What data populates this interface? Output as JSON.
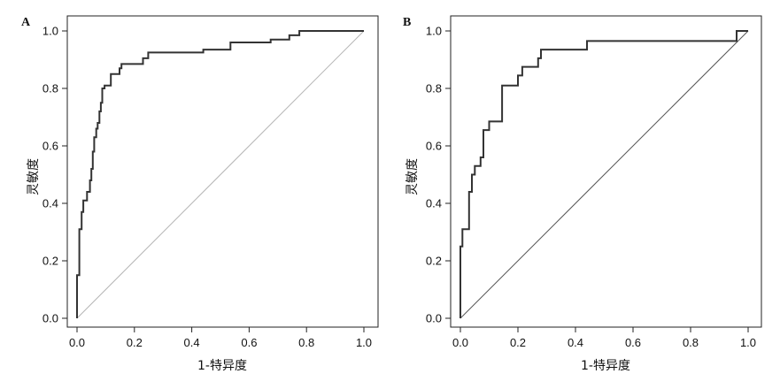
{
  "chart_data": [
    {
      "panel": "A",
      "type": "line",
      "xlabel": "1-特异度",
      "ylabel": "灵敏度",
      "xlim": [
        0,
        1
      ],
      "ylim": [
        0,
        1
      ],
      "xticks": [
        "0.0",
        "0.2",
        "0.4",
        "0.6",
        "0.8",
        "1.0"
      ],
      "yticks": [
        "0.0",
        "0.2",
        "0.4",
        "0.6",
        "0.8",
        "1.0"
      ],
      "diagonal_color": "#b5b5b5",
      "series": [
        {
          "points": [
            [
              0,
              0
            ],
            [
              0,
              0.15
            ],
            [
              0.008,
              0.15
            ],
            [
              0.008,
              0.31
            ],
            [
              0.016,
              0.31
            ],
            [
              0.016,
              0.37
            ],
            [
              0.022,
              0.37
            ],
            [
              0.022,
              0.41
            ],
            [
              0.035,
              0.41
            ],
            [
              0.035,
              0.44
            ],
            [
              0.045,
              0.44
            ],
            [
              0.045,
              0.48
            ],
            [
              0.05,
              0.48
            ],
            [
              0.05,
              0.52
            ],
            [
              0.055,
              0.52
            ],
            [
              0.055,
              0.58
            ],
            [
              0.06,
              0.58
            ],
            [
              0.06,
              0.63
            ],
            [
              0.067,
              0.63
            ],
            [
              0.067,
              0.66
            ],
            [
              0.072,
              0.66
            ],
            [
              0.072,
              0.68
            ],
            [
              0.078,
              0.68
            ],
            [
              0.078,
              0.72
            ],
            [
              0.083,
              0.72
            ],
            [
              0.083,
              0.75
            ],
            [
              0.088,
              0.75
            ],
            [
              0.088,
              0.8
            ],
            [
              0.096,
              0.8
            ],
            [
              0.096,
              0.81
            ],
            [
              0.118,
              0.81
            ],
            [
              0.118,
              0.85
            ],
            [
              0.148,
              0.85
            ],
            [
              0.148,
              0.87
            ],
            [
              0.155,
              0.87
            ],
            [
              0.155,
              0.885
            ],
            [
              0.23,
              0.885
            ],
            [
              0.23,
              0.905
            ],
            [
              0.248,
              0.905
            ],
            [
              0.248,
              0.925
            ],
            [
              0.44,
              0.925
            ],
            [
              0.44,
              0.935
            ],
            [
              0.535,
              0.935
            ],
            [
              0.535,
              0.96
            ],
            [
              0.675,
              0.96
            ],
            [
              0.675,
              0.97
            ],
            [
              0.74,
              0.97
            ],
            [
              0.74,
              0.985
            ],
            [
              0.775,
              0.985
            ],
            [
              0.775,
              1.0
            ],
            [
              1.0,
              1.0
            ]
          ]
        }
      ]
    },
    {
      "panel": "B",
      "type": "line",
      "xlabel": "1-特异度",
      "ylabel": "灵敏度",
      "xlim": [
        0,
        1
      ],
      "ylim": [
        0,
        1
      ],
      "xticks": [
        "0.0",
        "0.2",
        "0.4",
        "0.6",
        "0.8",
        "1.0"
      ],
      "yticks": [
        "0.0",
        "0.2",
        "0.4",
        "0.6",
        "0.8",
        "1.0"
      ],
      "diagonal_color": "#555555",
      "series": [
        {
          "points": [
            [
              0,
              0
            ],
            [
              0,
              0.25
            ],
            [
              0.007,
              0.25
            ],
            [
              0.007,
              0.31
            ],
            [
              0.03,
              0.31
            ],
            [
              0.03,
              0.44
            ],
            [
              0.04,
              0.44
            ],
            [
              0.04,
              0.5
            ],
            [
              0.05,
              0.5
            ],
            [
              0.05,
              0.53
            ],
            [
              0.07,
              0.53
            ],
            [
              0.07,
              0.56
            ],
            [
              0.08,
              0.56
            ],
            [
              0.08,
              0.655
            ],
            [
              0.1,
              0.655
            ],
            [
              0.1,
              0.685
            ],
            [
              0.145,
              0.685
            ],
            [
              0.145,
              0.81
            ],
            [
              0.2,
              0.81
            ],
            [
              0.2,
              0.845
            ],
            [
              0.215,
              0.845
            ],
            [
              0.215,
              0.875
            ],
            [
              0.27,
              0.875
            ],
            [
              0.27,
              0.905
            ],
            [
              0.28,
              0.905
            ],
            [
              0.28,
              0.935
            ],
            [
              0.44,
              0.935
            ],
            [
              0.44,
              0.965
            ],
            [
              0.96,
              0.965
            ],
            [
              0.96,
              1.0
            ],
            [
              1.0,
              1.0
            ]
          ]
        }
      ]
    }
  ]
}
